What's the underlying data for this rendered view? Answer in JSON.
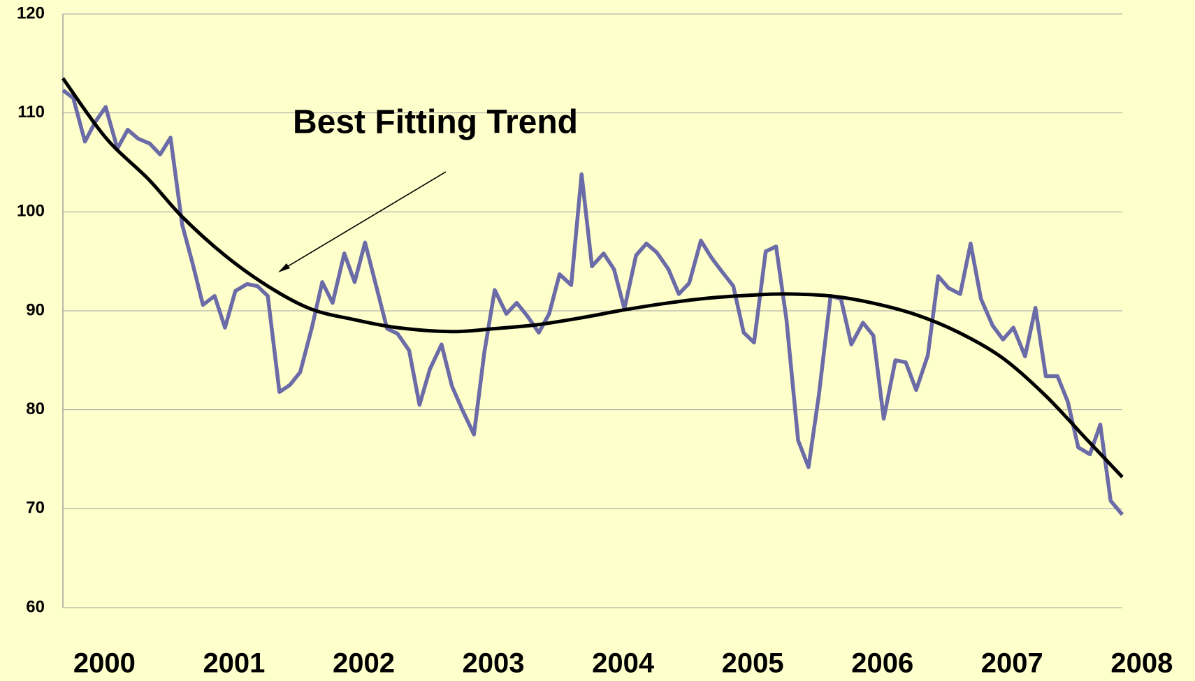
{
  "chart_data": {
    "type": "line",
    "annotations": [
      "Best Fitting Trend"
    ],
    "x": [
      1999.68,
      1999.76,
      1999.85,
      1999.93,
      2000.01,
      2000.1,
      2000.18,
      2000.26,
      2000.35,
      2000.43,
      2000.51,
      2000.6,
      2000.68,
      2000.76,
      2000.85,
      2000.93,
      2001.01,
      2001.1,
      2001.18,
      2001.26,
      2001.35,
      2001.43,
      2001.51,
      2001.6,
      2001.68,
      2001.76,
      2001.85,
      2001.93,
      2002.01,
      2002.1,
      2002.18,
      2002.26,
      2002.35,
      2002.43,
      2002.51,
      2002.6,
      2002.68,
      2002.76,
      2002.85,
      2002.93,
      2003.01,
      2003.1,
      2003.18,
      2003.26,
      2003.35,
      2003.43,
      2003.51,
      2003.6,
      2003.68,
      2003.76,
      2003.85,
      2003.93,
      2004.01,
      2004.1,
      2004.18,
      2004.26,
      2004.35,
      2004.43,
      2004.51,
      2004.6,
      2004.68,
      2004.76,
      2004.85,
      2004.93,
      2005.01,
      2005.1,
      2005.18,
      2005.26,
      2005.35,
      2005.43,
      2005.51,
      2005.6,
      2005.68,
      2005.76,
      2005.85,
      2005.93,
      2006.01,
      2006.1,
      2006.18,
      2006.26,
      2006.35,
      2006.43,
      2006.51,
      2006.6,
      2006.68,
      2006.76,
      2006.85,
      2006.93,
      2007.01,
      2007.1,
      2007.18,
      2007.26,
      2007.35,
      2007.43,
      2007.51,
      2007.6,
      2007.68,
      2007.76,
      2007.85
    ],
    "series": [
      {
        "color": "#6b6ba8",
        "values": [
          112.3,
          111.5,
          107.1,
          109.1,
          110.6,
          106.4,
          108.3,
          107.4,
          106.9,
          105.8,
          107.5,
          98.7,
          94.8,
          90.6,
          91.5,
          88.3,
          92,
          92.7,
          92.5,
          91.5,
          81.8,
          82.5,
          83.8,
          88.3,
          92.9,
          90.8,
          95.8,
          92.9,
          96.9,
          92.3,
          88.2,
          87.7,
          86,
          80.5,
          84.1,
          86.6,
          82.4,
          80,
          77.5,
          85.8,
          92.1,
          89.7,
          90.8,
          89.5,
          87.8,
          89.7,
          93.7,
          92.6,
          103.8,
          94.5,
          95.8,
          94.2,
          90.2,
          95.6,
          96.8,
          95.9,
          94.2,
          91.7,
          92.8,
          97.1,
          95.4,
          94,
          92.5,
          87.8,
          86.8,
          96,
          96.5,
          89.1,
          76.9,
          74.2,
          81.5,
          91.5,
          91.2,
          86.6,
          88.8,
          87.5,
          79.1,
          85,
          84.8,
          82,
          85.5,
          93.5,
          92.3,
          91.7,
          96.8,
          91.2,
          88.5,
          87.1,
          88.3,
          85.4,
          90.3,
          83.4,
          83.4,
          80.8,
          76.2,
          75.5,
          78.5,
          70.8,
          69.4
        ]
      },
      {
        "color": "#000000",
        "smooth": true,
        "x": [
          1999.68,
          2000.01,
          2000.34,
          2000.6,
          2000.93,
          2001.26,
          2001.59,
          2001.93,
          2002.26,
          2002.68,
          2003.01,
          2003.34,
          2003.68,
          2004.01,
          2004.35,
          2004.67,
          2005.01,
          2005.26,
          2005.6,
          2005.92,
          2006.26,
          2006.59,
          2006.93,
          2007.26,
          2007.59,
          2007.85
        ],
        "values": [
          113.5,
          107.5,
          103.3,
          99.5,
          95.6,
          92.5,
          90.2,
          89.1,
          88.3,
          87.9,
          88.2,
          88.6,
          89.3,
          90.1,
          90.8,
          91.3,
          91.6,
          91.7,
          91.5,
          90.8,
          89.6,
          87.8,
          85.2,
          81.4,
          76.8,
          73.2
        ]
      }
    ],
    "xlim": [
      1999.68,
      2007.85
    ],
    "xticks": [
      2000,
      2001,
      2002,
      2003,
      2004,
      2005,
      2006,
      2007,
      2008
    ],
    "ylim": [
      60,
      120
    ],
    "yticks": [
      60,
      70,
      80,
      90,
      100,
      110,
      120
    ],
    "grid": true
  }
}
